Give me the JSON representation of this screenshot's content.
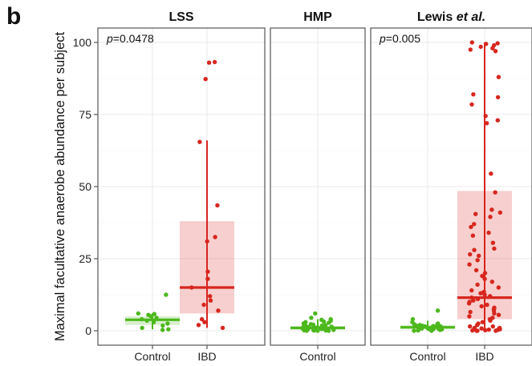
{
  "figure_label": "b",
  "chart_data": {
    "type": "box",
    "ylabel": "Maximal facultative anaerobe abundance per subject",
    "ylim": [
      -5,
      105
    ],
    "yticks": [
      0,
      25,
      50,
      75,
      100
    ],
    "grid": true,
    "group_colors": {
      "Control": "#4cb81c",
      "IBD": "#d7261e"
    },
    "panels": [
      {
        "title": "LSS",
        "pvalue": "p=0.0478",
        "groups": [
          {
            "name": "Control",
            "box": {
              "q1": 2,
              "median": 3.8,
              "q3": 5,
              "lower": 0.5,
              "upper": 6
            },
            "points": [
              12.5,
              6,
              5.8,
              5.5,
              5,
              4.5,
              4,
              3.5,
              3,
              2.5,
              1.8,
              1,
              0.5,
              0.3
            ]
          },
          {
            "name": "IBD",
            "box": {
              "q1": 6,
              "median": 15,
              "q3": 38,
              "lower": 1,
              "upper": 66
            },
            "points": [
              93.2,
              93,
              87.3,
              65.5,
              43.5,
              32.5,
              31,
              20.5,
              18,
              15,
              12,
              10.5,
              9,
              7,
              4,
              3,
              2,
              1
            ]
          }
        ]
      },
      {
        "title": "HMP",
        "pvalue": "",
        "groups": [
          {
            "name": "Control",
            "box": {
              "q1": 0.3,
              "median": 1,
              "q3": 1.6,
              "lower": 0,
              "upper": 4
            },
            "points": [
              6,
              4.5,
              4,
              3.8,
              3.5,
              3.2,
              3,
              2.8,
              2.5,
              2.3,
              2,
              1.8,
              1.6,
              1.5,
              1.3,
              1.2,
              1,
              0.9,
              0.8,
              0.7,
              0.6,
              0.5,
              0.5,
              0.4,
              0.3,
              0.3,
              0.2,
              0.2,
              0.1,
              0.1,
              0,
              0,
              0,
              0.6,
              1.1,
              1.4,
              0.4,
              0.8,
              2.1,
              0.2
            ]
          }
        ]
      },
      {
        "title": "Lewis et al.",
        "title_main": "Lewis ",
        "title_italic": "et al.",
        "pvalue": "p=0.005",
        "groups": [
          {
            "name": "Control",
            "box": {
              "q1": 0.5,
              "median": 1.2,
              "q3": 2,
              "lower": 0,
              "upper": 3.5
            },
            "points": [
              7,
              4,
              3,
              2.5,
              2.2,
              2,
              1.8,
              1.6,
              1.5,
              1.4,
              1.3,
              1.2,
              1.1,
              1,
              0.9,
              0.8,
              0.7,
              0.6,
              0.5,
              0.4,
              0.3,
              0.2,
              0.1,
              0,
              0,
              1.5,
              2.3,
              0.6,
              0.9,
              1.7
            ]
          },
          {
            "name": "IBD",
            "box": {
              "q1": 4,
              "median": 11.5,
              "q3": 48.5,
              "lower": 0,
              "upper": 100
            },
            "points": [
              100,
              99.7,
              99.5,
              99,
              98.5,
              98,
              97.5,
              97,
              88,
              82,
              81,
              78.5,
              74.5,
              73,
              72,
              54.5,
              48,
              42,
              41,
              40.5,
              39.5,
              37,
              36,
              34,
              30.5,
              28.5,
              28,
              26,
              24.5,
              23,
              21,
              20,
              19,
              18,
              17,
              16,
              15,
              14,
              13.5,
              13,
              12.5,
              12,
              11.5,
              11,
              10.5,
              10,
              9.5,
              9,
              8.5,
              8,
              7.5,
              7,
              6.5,
              6,
              5.5,
              5,
              4.5,
              4,
              3.5,
              3,
              2.5,
              2,
              1.5,
              1.5,
              1,
              1,
              0.8,
              0.6,
              0.5,
              0.4,
              0.3,
              0.2,
              0.1,
              0,
              0,
              0,
              26.5,
              33
            ]
          }
        ]
      }
    ]
  }
}
